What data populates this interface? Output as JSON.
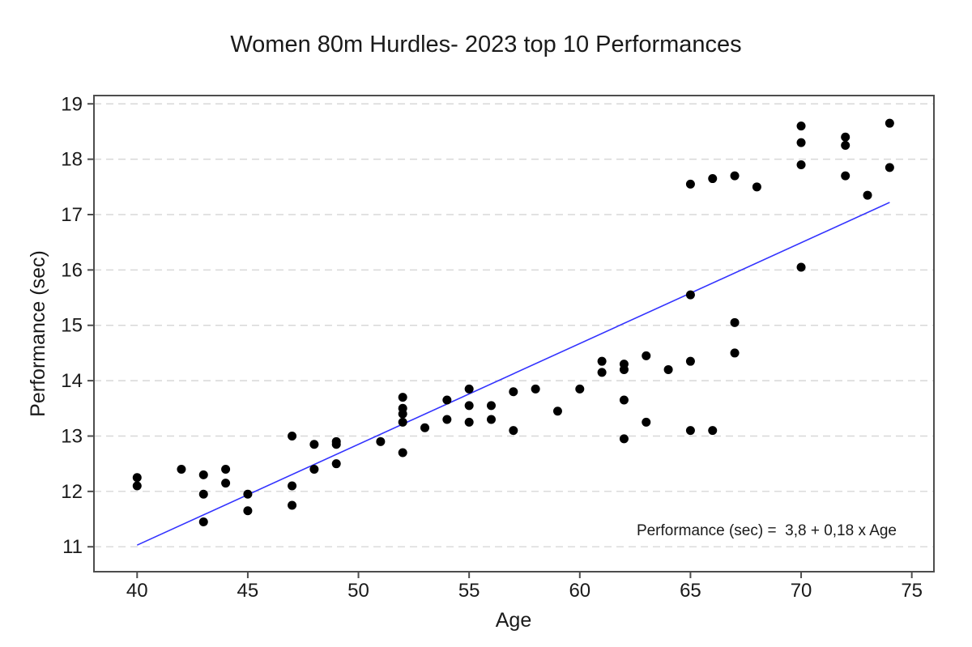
{
  "chart_data": {
    "type": "scatter",
    "title": "Women 80m Hurdles- 2023 top 10 Performances",
    "xlabel": "Age",
    "ylabel": "Performance (sec)",
    "annotation": "Performance (sec) =  3,8 + 0,18 x Age",
    "xlim": [
      38.05,
      76.0
    ],
    "ylim": [
      10.55,
      19.15
    ],
    "xticks": [
      40,
      45,
      50,
      55,
      60,
      65,
      70,
      75
    ],
    "yticks": [
      11,
      12,
      13,
      14,
      15,
      16,
      17,
      18,
      19
    ],
    "grid": "horizontal-dashed",
    "legend": "none",
    "colors": {
      "point": "#000000",
      "regression_line": "#3333ff",
      "gridline": "#d8d8d8",
      "frame": "#4d4d4d",
      "text": "#1a1a1a"
    },
    "regression": {
      "equation_intercept": "3,8",
      "equation_slope": "0,18",
      "x": [
        40,
        74
      ],
      "y": [
        11.03,
        17.22
      ]
    },
    "points": [
      [
        40,
        12.25
      ],
      [
        40,
        12.1
      ],
      [
        42,
        12.4
      ],
      [
        43,
        12.3
      ],
      [
        43,
        11.95
      ],
      [
        43,
        11.45
      ],
      [
        44,
        12.4
      ],
      [
        44,
        12.15
      ],
      [
        45,
        11.95
      ],
      [
        45,
        11.65
      ],
      [
        47,
        13.0
      ],
      [
        47,
        12.1
      ],
      [
        47,
        11.75
      ],
      [
        48,
        12.85
      ],
      [
        48,
        12.4
      ],
      [
        49,
        12.9
      ],
      [
        49,
        12.85
      ],
      [
        49,
        12.5
      ],
      [
        51,
        12.9
      ],
      [
        52,
        13.7
      ],
      [
        52,
        13.5
      ],
      [
        52,
        13.4
      ],
      [
        52,
        13.25
      ],
      [
        52,
        12.7
      ],
      [
        53,
        13.15
      ],
      [
        54,
        13.65
      ],
      [
        54,
        13.3
      ],
      [
        55,
        13.85
      ],
      [
        55,
        13.55
      ],
      [
        55,
        13.25
      ],
      [
        56,
        13.55
      ],
      [
        56,
        13.3
      ],
      [
        57,
        13.8
      ],
      [
        57,
        13.1
      ],
      [
        58,
        13.85
      ],
      [
        59,
        13.45
      ],
      [
        60,
        13.85
      ],
      [
        61,
        14.35
      ],
      [
        61,
        14.15
      ],
      [
        62,
        14.3
      ],
      [
        62,
        14.2
      ],
      [
        62,
        13.65
      ],
      [
        62,
        12.95
      ],
      [
        63,
        14.45
      ],
      [
        63,
        13.25
      ],
      [
        64,
        14.2
      ],
      [
        65,
        17.55
      ],
      [
        65,
        15.55
      ],
      [
        65,
        14.35
      ],
      [
        65,
        13.1
      ],
      [
        66,
        17.65
      ],
      [
        66,
        13.1
      ],
      [
        67,
        17.7
      ],
      [
        67,
        15.05
      ],
      [
        67,
        14.5
      ],
      [
        68,
        17.5
      ],
      [
        70,
        18.6
      ],
      [
        70,
        18.3
      ],
      [
        70,
        17.9
      ],
      [
        70,
        16.05
      ],
      [
        72,
        18.4
      ],
      [
        72,
        18.25
      ],
      [
        72,
        17.7
      ],
      [
        73,
        17.35
      ],
      [
        74,
        18.65
      ],
      [
        74,
        17.85
      ]
    ]
  }
}
